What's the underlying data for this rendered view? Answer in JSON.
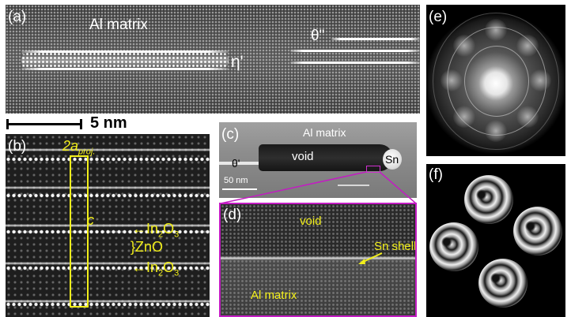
{
  "panel_a": {
    "label": "(a)",
    "matrix_label": "Al matrix",
    "eta_label": "η'",
    "theta_label": "θ\""
  },
  "scale": {
    "text": "5 nm"
  },
  "panel_b": {
    "label": "(b)",
    "cell_a": "2a",
    "cell_a_sub": "proj.",
    "cell_c": "c",
    "layers": [
      {
        "text": "In",
        "sub1": "2",
        "mid": "O",
        "sub2": "3"
      },
      {
        "text": "ZnO"
      },
      {
        "text": "In",
        "sub1": "2",
        "mid": "O",
        "sub2": "3"
      }
    ]
  },
  "panel_c": {
    "label": "(c)",
    "matrix_label": "Al matrix",
    "void_label": "void",
    "sn_label": "Sn",
    "theta_label": "θ'",
    "scale_text": "50 nm"
  },
  "panel_d": {
    "label": "(d)",
    "void_label": "void",
    "shell_label": "Sn shell",
    "matrix_label": "Al matrix"
  },
  "panel_e": {
    "label": "(e)"
  },
  "panel_f": {
    "label": "(f)"
  },
  "colors": {
    "annotation_yellow": "#f2ef1a",
    "zoom_magenta": "#c31cc3"
  }
}
